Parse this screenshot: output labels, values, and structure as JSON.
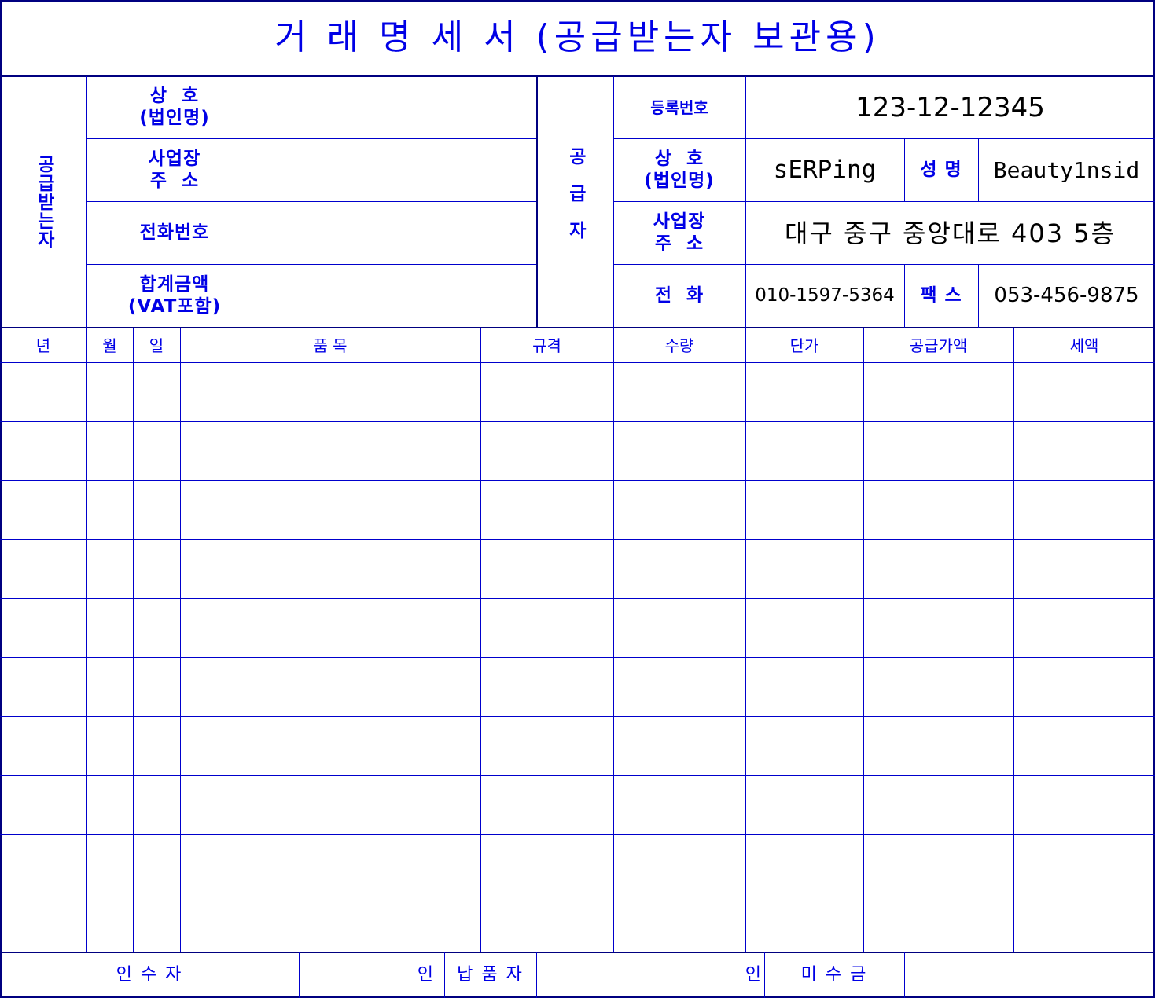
{
  "title": "거 래 명 세 서 (공급받는자 보관용)",
  "buyer": {
    "section_label": "공급받는자",
    "company_label_1": "상  호",
    "company_label_2": "(법인명)",
    "company_value": "",
    "address_label_1": "사업장",
    "address_label_2": "주  소",
    "address_value": "",
    "phone_label": "전화번호",
    "phone_value": "",
    "total_label_1": "합계금액",
    "total_label_2": "(VAT포함)",
    "total_value": ""
  },
  "supplier": {
    "section_label": "공급자",
    "reg_label": "등록번호",
    "reg_value": "123-12-12345",
    "company_label_1": "상  호",
    "company_label_2": "(법인명)",
    "company_value": "sERPing",
    "name_label": "성 명",
    "name_value": "Beauty1nsid",
    "address_label_1": "사업장",
    "address_label_2": "주  소",
    "address_value": "대구 중구 중앙대로 403 5층",
    "phone_label": "전  화",
    "phone_value": "010-1597-5364",
    "fax_label": "팩 스",
    "fax_value": "053-456-9875"
  },
  "items_table": {
    "columns": [
      "년",
      "월",
      "일",
      "품 목",
      "규격",
      "수량",
      "단가",
      "공급가액",
      "세액"
    ],
    "rows": [
      [
        "",
        "",
        "",
        "",
        "",
        "",
        "",
        "",
        ""
      ],
      [
        "",
        "",
        "",
        "",
        "",
        "",
        "",
        "",
        ""
      ],
      [
        "",
        "",
        "",
        "",
        "",
        "",
        "",
        "",
        ""
      ],
      [
        "",
        "",
        "",
        "",
        "",
        "",
        "",
        "",
        ""
      ],
      [
        "",
        "",
        "",
        "",
        "",
        "",
        "",
        "",
        ""
      ],
      [
        "",
        "",
        "",
        "",
        "",
        "",
        "",
        "",
        ""
      ],
      [
        "",
        "",
        "",
        "",
        "",
        "",
        "",
        "",
        ""
      ],
      [
        "",
        "",
        "",
        "",
        "",
        "",
        "",
        "",
        ""
      ],
      [
        "",
        "",
        "",
        "",
        "",
        "",
        "",
        "",
        ""
      ],
      [
        "",
        "",
        "",
        "",
        "",
        "",
        "",
        "",
        ""
      ]
    ]
  },
  "footer": {
    "receiver_label": "인 수 자",
    "receiver_seal": "인",
    "deliverer_label": "납 품 자",
    "deliverer_seal": "인",
    "unpaid_label": "미 수 금",
    "unpaid_value": ""
  },
  "colors": {
    "text": "#0000e6",
    "line": "#0000cc",
    "border": "#000080",
    "value_text": "#000000"
  }
}
